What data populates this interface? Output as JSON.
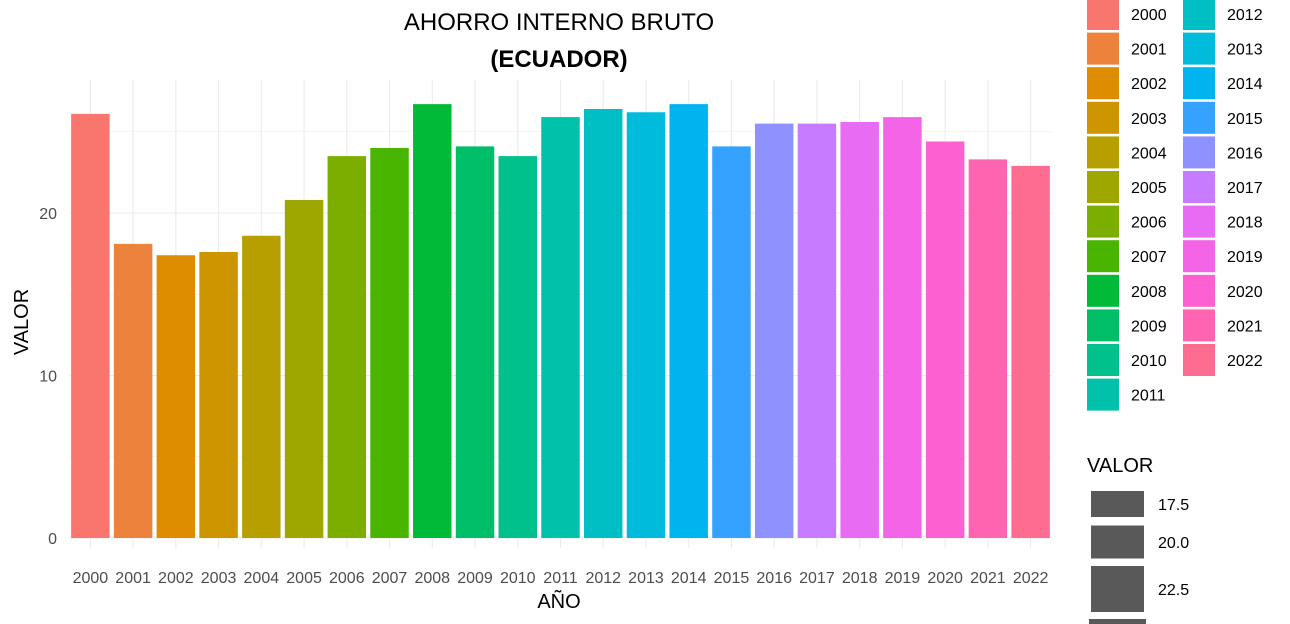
{
  "chart_data": {
    "type": "bar",
    "title": "AHORRO INTERNO BRUTO",
    "subtitle": "(ECUADOR)",
    "xlabel": "AÑO",
    "ylabel": "VALOR",
    "ylim": [
      0,
      28
    ],
    "yticks": [
      "0",
      "10",
      "20"
    ],
    "grid": true,
    "categories": [
      "2000",
      "2001",
      "2002",
      "2003",
      "2004",
      "2005",
      "2006",
      "2007",
      "2008",
      "2009",
      "2010",
      "2011",
      "2012",
      "2013",
      "2014",
      "2015",
      "2016",
      "2017",
      "2018",
      "2019",
      "2020",
      "2021",
      "2022"
    ],
    "values": [
      26.1,
      18.1,
      17.4,
      17.6,
      18.6,
      20.8,
      23.5,
      24.0,
      26.7,
      24.1,
      23.5,
      25.9,
      26.4,
      26.2,
      26.7,
      24.1,
      25.5,
      25.5,
      25.6,
      25.9,
      24.4,
      23.3,
      22.9
    ],
    "colors": [
      "#F8766D",
      "#EC823C",
      "#DE8C00",
      "#CD9600",
      "#B79F00",
      "#9DA700",
      "#7CAE00",
      "#49B500",
      "#00BA38",
      "#00BE67",
      "#00C08B",
      "#00C1A9",
      "#00BFC4",
      "#00BBDC",
      "#00B4F0",
      "#35A2FF",
      "#8F91FF",
      "#C77CFF",
      "#E76BF3",
      "#F365E6",
      "#FD61D1",
      "#FF64B0",
      "#FF6C91"
    ],
    "legend_fill": {
      "position": "right",
      "items": [
        "2000",
        "2001",
        "2002",
        "2003",
        "2004",
        "2005",
        "2006",
        "2007",
        "2008",
        "2009",
        "2010",
        "2011",
        "2012",
        "2013",
        "2014",
        "2015",
        "2016",
        "2017",
        "2018",
        "2019",
        "2020",
        "2021",
        "2022"
      ]
    },
    "legend_size": {
      "title": "VALOR",
      "items": [
        "17.5",
        "20.0",
        "22.5"
      ],
      "color": "#595959"
    }
  }
}
